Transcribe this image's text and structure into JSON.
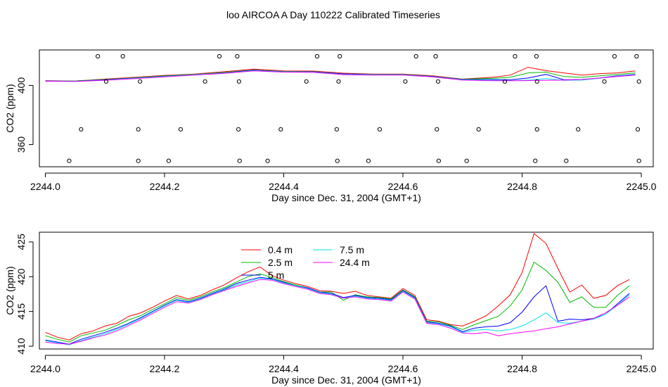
{
  "title": "loo AIRCOA A  Day 110222  Calibrated Timeseries",
  "colors": {
    "series": [
      "#ff0000",
      "#00bb00",
      "#0000ff",
      "#00e5e5",
      "#ff00ff"
    ],
    "axis": "#000000",
    "points": "#000000"
  },
  "chart_data": [
    {
      "type": "scatter",
      "xlabel": "Day since Dec. 31, 2004 (GMT+1)",
      "ylabel": "CO2 (ppm)",
      "xlim": [
        2243.99,
        2245.02
      ],
      "ylim": [
        345,
        424
      ],
      "xticks": [
        2244.0,
        2244.2,
        2244.4,
        2244.6,
        2244.8,
        2245.0
      ],
      "xtick_labels": [
        "2244.0",
        "2244.2",
        "2244.4",
        "2244.6",
        "2244.8",
        "2245.0"
      ],
      "yticks": [
        360,
        400
      ],
      "ytick_labels": [
        "360",
        "400"
      ],
      "grid": false,
      "series": [
        {
          "marker": "open-circle",
          "points": [
            [
              2244.088,
              419.7
            ],
            [
              2244.13,
              419.7
            ],
            [
              2244.292,
              419.7
            ],
            [
              2244.322,
              419.7
            ],
            [
              2244.456,
              419.7
            ],
            [
              2244.494,
              419.7
            ],
            [
              2244.622,
              419.7
            ],
            [
              2244.655,
              419.7
            ],
            [
              2244.788,
              419.7
            ],
            [
              2244.824,
              419.7
            ],
            [
              2244.955,
              419.7
            ],
            [
              2244.992,
              419.7
            ],
            [
              2244.102,
              402.7
            ],
            [
              2244.159,
              402.7
            ],
            [
              2244.268,
              402.7
            ],
            [
              2244.325,
              402.7
            ],
            [
              2244.438,
              402.7
            ],
            [
              2244.492,
              402.7
            ],
            [
              2244.604,
              402.7
            ],
            [
              2244.659,
              402.7
            ],
            [
              2244.771,
              402.7
            ],
            [
              2244.825,
              402.7
            ],
            [
              2244.938,
              402.7
            ],
            [
              2244.996,
              402.7
            ],
            [
              2244.06,
              370.3
            ],
            [
              2244.156,
              370.3
            ],
            [
              2244.227,
              370.3
            ],
            [
              2244.324,
              370.3
            ],
            [
              2244.395,
              370.3
            ],
            [
              2244.489,
              370.3
            ],
            [
              2244.561,
              370.3
            ],
            [
              2244.657,
              370.3
            ],
            [
              2244.727,
              370.3
            ],
            [
              2244.825,
              370.3
            ],
            [
              2244.894,
              370.3
            ],
            [
              2244.994,
              370.3
            ],
            [
              2244.04,
              349.0
            ],
            [
              2244.156,
              349.0
            ],
            [
              2244.207,
              349.0
            ],
            [
              2244.326,
              349.0
            ],
            [
              2244.373,
              349.0
            ],
            [
              2244.49,
              349.0
            ],
            [
              2244.542,
              349.0
            ],
            [
              2244.66,
              349.0
            ],
            [
              2244.707,
              349.0
            ],
            [
              2244.822,
              349.0
            ],
            [
              2244.874,
              349.0
            ],
            [
              2244.996,
              349.0
            ]
          ]
        }
      ],
      "lines": [
        {
          "name": "0.4 m",
          "color": "#ff0000",
          "x": [
            2244.0,
            2244.05,
            2244.1,
            2244.15,
            2244.2,
            2244.25,
            2244.3,
            2244.35,
            2244.4,
            2244.45,
            2244.5,
            2244.55,
            2244.6,
            2244.65,
            2244.7,
            2244.75,
            2244.78,
            2244.81,
            2244.84,
            2244.87,
            2244.9,
            2244.93,
            2244.96,
            2244.99
          ],
          "y": [
            403.2,
            403.0,
            404.3,
            405.5,
            406.8,
            407.7,
            409.3,
            411.0,
            409.8,
            409.7,
            408.3,
            407.7,
            407.7,
            406.5,
            404.3,
            405.5,
            407.0,
            412.3,
            410.0,
            408.5,
            407.0,
            408.0,
            408.5,
            409.8
          ]
        },
        {
          "name": "2.5 m",
          "color": "#00bb00",
          "x": [
            2244.0,
            2244.05,
            2244.1,
            2244.15,
            2244.2,
            2244.25,
            2244.3,
            2244.35,
            2244.4,
            2244.45,
            2244.5,
            2244.55,
            2244.6,
            2244.65,
            2244.7,
            2244.75,
            2244.78,
            2244.81,
            2244.84,
            2244.87,
            2244.9,
            2244.93,
            2244.96,
            2244.99
          ],
          "y": [
            403.0,
            403.0,
            404.0,
            405.2,
            406.5,
            407.5,
            408.8,
            410.5,
            409.5,
            409.3,
            407.8,
            407.5,
            407.5,
            406.2,
            404.2,
            404.8,
            405.5,
            408.5,
            409.0,
            406.0,
            405.5,
            406.5,
            407.5,
            408.5
          ]
        },
        {
          "name": "5 m",
          "color": "#0000ff",
          "x": [
            2244.0,
            2244.05,
            2244.1,
            2244.15,
            2244.2,
            2244.25,
            2244.3,
            2244.35,
            2244.4,
            2244.45,
            2244.5,
            2244.55,
            2244.6,
            2244.65,
            2244.7,
            2244.75,
            2244.78,
            2244.81,
            2244.84,
            2244.87,
            2244.9,
            2244.93,
            2244.96,
            2244.99
          ],
          "y": [
            403.0,
            402.8,
            403.8,
            405.0,
            406.2,
            407.3,
            408.5,
            410.3,
            409.3,
            409.2,
            407.8,
            407.3,
            407.3,
            406.0,
            404.0,
            404.0,
            403.8,
            405.0,
            407.5,
            403.8,
            404.0,
            405.0,
            406.5,
            407.5
          ]
        },
        {
          "name": "7.5 m",
          "color": "#00e5e5",
          "x": [
            2244.0,
            2244.05,
            2244.1,
            2244.15,
            2244.2,
            2244.25,
            2244.3,
            2244.35,
            2244.4,
            2244.45,
            2244.5,
            2244.55,
            2244.6,
            2244.65,
            2244.7,
            2244.75,
            2244.78,
            2244.81,
            2244.84,
            2244.87,
            2244.9,
            2244.93,
            2244.96,
            2244.99
          ],
          "y": [
            402.8,
            402.7,
            403.6,
            404.8,
            406.0,
            407.2,
            408.3,
            410.0,
            409.2,
            409.0,
            407.5,
            407.2,
            407.2,
            405.8,
            403.8,
            403.6,
            403.3,
            403.6,
            404.6,
            403.5,
            403.6,
            404.8,
            406.2,
            407.2
          ]
        },
        {
          "name": "24.4 m",
          "color": "#ff00ff",
          "x": [
            2244.0,
            2244.05,
            2244.1,
            2244.15,
            2244.2,
            2244.25,
            2244.3,
            2244.35,
            2244.4,
            2244.45,
            2244.5,
            2244.55,
            2244.6,
            2244.65,
            2244.7,
            2244.75,
            2244.78,
            2244.81,
            2244.84,
            2244.87,
            2244.9,
            2244.93,
            2244.96,
            2244.99
          ],
          "y": [
            402.8,
            402.7,
            403.5,
            404.6,
            405.8,
            407.0,
            408.2,
            409.8,
            409.0,
            408.8,
            407.3,
            407.0,
            407.0,
            405.8,
            403.6,
            403.2,
            403.2,
            403.3,
            403.5,
            403.6,
            404.0,
            405.0,
            406.0,
            407.0
          ]
        }
      ]
    },
    {
      "type": "line",
      "xlabel": "Day since Dec. 31, 2004 (GMT+1)",
      "ylabel": "CO2 (ppm)",
      "xlim": [
        2243.99,
        2245.02
      ],
      "ylim": [
        409.6,
        426.4
      ],
      "xticks": [
        2244.0,
        2244.2,
        2244.4,
        2244.6,
        2244.8,
        2245.0
      ],
      "xtick_labels": [
        "2244.0",
        "2244.2",
        "2244.4",
        "2244.6",
        "2244.8",
        "2245.0"
      ],
      "yticks": [
        410,
        415,
        420,
        425
      ],
      "ytick_labels": [
        "410",
        "415",
        "420",
        "425"
      ],
      "grid": false,
      "legend": {
        "placement": "top-center",
        "columns": [
          [
            "0.4 m",
            "2.5 m",
            "5 m"
          ],
          [
            "7.5 m",
            "24.4 m"
          ]
        ]
      },
      "x": [
        2244.0,
        2244.02,
        2244.04,
        2244.06,
        2244.08,
        2244.1,
        2244.12,
        2244.14,
        2244.16,
        2244.18,
        2244.2,
        2244.22,
        2244.24,
        2244.26,
        2244.28,
        2244.3,
        2244.32,
        2244.34,
        2244.36,
        2244.38,
        2244.4,
        2244.42,
        2244.44,
        2244.46,
        2244.48,
        2244.5,
        2244.52,
        2244.54,
        2244.56,
        2244.58,
        2244.6,
        2244.62,
        2244.64,
        2244.66,
        2244.68,
        2244.7,
        2244.72,
        2244.74,
        2244.76,
        2244.78,
        2244.8,
        2244.82,
        2244.84,
        2244.86,
        2244.88,
        2244.9,
        2244.92,
        2244.94,
        2244.96,
        2244.98
      ],
      "series": [
        {
          "name": "0.4 m",
          "color": "#ff0000",
          "values": [
            412.0,
            411.3,
            410.9,
            411.8,
            412.2,
            412.9,
            413.3,
            414.3,
            414.8,
            415.6,
            416.5,
            417.3,
            416.8,
            417.3,
            418.1,
            418.8,
            419.8,
            420.7,
            421.4,
            420.2,
            419.5,
            419.0,
            418.6,
            418.0,
            417.9,
            417.6,
            417.9,
            417.3,
            417.1,
            416.9,
            418.3,
            417.3,
            413.8,
            413.6,
            413.1,
            412.9,
            413.6,
            414.4,
            415.8,
            417.4,
            420.6,
            426.2,
            424.8,
            421.2,
            417.8,
            418.8,
            416.9,
            417.3,
            418.7,
            419.6
          ]
        },
        {
          "name": "2.5 m",
          "color": "#00bb00",
          "values": [
            411.5,
            411.0,
            410.6,
            411.5,
            411.9,
            412.3,
            413.0,
            413.8,
            414.4,
            415.3,
            416.1,
            417.0,
            416.6,
            417.1,
            417.8,
            418.4,
            419.2,
            420.0,
            420.4,
            419.9,
            419.3,
            418.8,
            418.4,
            417.8,
            417.8,
            416.6,
            417.4,
            417.1,
            417.0,
            416.8,
            418.1,
            417.1,
            413.6,
            413.5,
            413.0,
            412.4,
            413.1,
            413.7,
            414.3,
            415.8,
            418.1,
            422.1,
            420.9,
            419.2,
            416.3,
            417.1,
            415.6,
            415.6,
            417.3,
            418.7
          ]
        },
        {
          "name": "5 m",
          "color": "#0000ff",
          "values": [
            410.9,
            410.6,
            410.3,
            411.0,
            411.5,
            412.0,
            412.6,
            413.3,
            414.1,
            415.0,
            415.9,
            416.7,
            416.4,
            416.9,
            417.6,
            418.2,
            419.0,
            419.5,
            419.9,
            419.7,
            419.2,
            418.7,
            418.4,
            417.8,
            417.6,
            417.0,
            417.3,
            417.0,
            416.9,
            416.7,
            418.0,
            417.0,
            413.5,
            413.3,
            412.9,
            412.1,
            412.6,
            412.8,
            412.9,
            413.4,
            414.9,
            417.1,
            418.7,
            413.6,
            413.9,
            413.8,
            414.0,
            414.6,
            416.1,
            417.6
          ]
        },
        {
          "name": "7.5 m",
          "color": "#00e5e5",
          "values": [
            410.8,
            410.5,
            410.2,
            410.8,
            411.3,
            411.8,
            412.4,
            413.2,
            414.0,
            414.9,
            415.8,
            416.6,
            416.3,
            416.8,
            417.5,
            418.1,
            418.8,
            419.3,
            419.8,
            419.6,
            419.1,
            418.7,
            418.3,
            417.7,
            417.5,
            416.9,
            417.2,
            416.9,
            416.8,
            416.6,
            417.9,
            416.9,
            413.4,
            413.2,
            412.8,
            412.0,
            412.3,
            412.4,
            412.2,
            412.4,
            412.9,
            413.8,
            414.8,
            413.4,
            413.3,
            413.6,
            413.9,
            414.6,
            415.9,
            417.4
          ]
        },
        {
          "name": "24.4 m",
          "color": "#ff00ff",
          "values": [
            410.6,
            410.4,
            410.3,
            410.7,
            411.2,
            411.6,
            412.2,
            413.0,
            413.8,
            414.7,
            415.6,
            416.4,
            416.2,
            416.7,
            417.4,
            418.0,
            418.6,
            419.1,
            419.6,
            419.5,
            419.0,
            418.6,
            418.2,
            417.6,
            417.4,
            416.9,
            417.1,
            416.8,
            416.7,
            416.5,
            417.8,
            416.8,
            413.3,
            413.1,
            412.6,
            411.9,
            411.8,
            412.0,
            411.5,
            411.8,
            412.0,
            412.2,
            412.5,
            412.8,
            413.2,
            413.6,
            414.0,
            414.8,
            415.9,
            417.1
          ]
        }
      ]
    }
  ]
}
